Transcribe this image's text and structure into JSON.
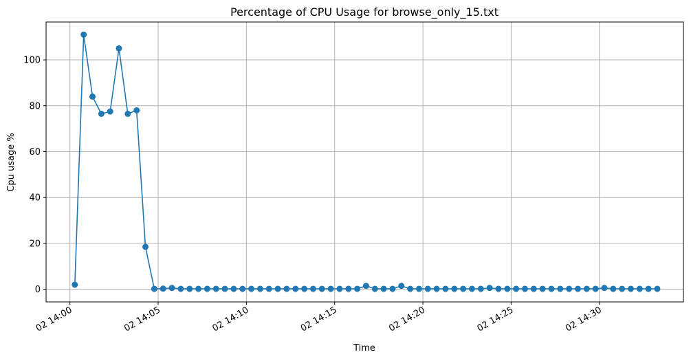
{
  "chart_data": {
    "type": "line",
    "title": "Percentage of CPU Usage for browse_only_15.txt",
    "xlabel": "Time",
    "ylabel": "Cpu usage %",
    "x_tick_labels": [
      "02 14:00",
      "02 14:05",
      "02 14:10",
      "02 14:15",
      "02 14:20",
      "02 14:25",
      "02 14:30"
    ],
    "x_tick_minutes": [
      0,
      5,
      10,
      15,
      20,
      25,
      30
    ],
    "xlim_minutes": [
      -1.35,
      34.76
    ],
    "y_ticks": [
      0,
      20,
      40,
      60,
      80,
      100
    ],
    "ylim": [
      -5.5,
      116.5
    ],
    "grid": true,
    "color": "#1f77b4",
    "series": [
      {
        "x_minutes": [
          0.28,
          0.78,
          1.28,
          1.78,
          2.28,
          2.78,
          3.28,
          3.78,
          4.28,
          4.78,
          5.28,
          5.78,
          6.28,
          6.78,
          7.28,
          7.78,
          8.28,
          8.78,
          9.28,
          9.78,
          10.28,
          10.78,
          11.28,
          11.78,
          12.28,
          12.78,
          13.28,
          13.78,
          14.28,
          14.78,
          15.28,
          15.78,
          16.28,
          16.78,
          17.28,
          17.78,
          18.28,
          18.78,
          19.28,
          19.78,
          20.28,
          20.78,
          21.28,
          21.78,
          22.28,
          22.78,
          23.28,
          23.78,
          24.28,
          24.78,
          25.28,
          25.78,
          26.28,
          26.78,
          27.28,
          27.78,
          28.28,
          28.78,
          29.28,
          29.78,
          30.28,
          30.78,
          31.28,
          31.78,
          32.28,
          32.78,
          33.28
        ],
        "values": [
          2,
          111,
          84,
          76.5,
          77.5,
          105,
          76.5,
          78,
          18.5,
          0.2,
          0.3,
          0.6,
          0.2,
          0.2,
          0.2,
          0.2,
          0.2,
          0.2,
          0.2,
          0.2,
          0.2,
          0.2,
          0.2,
          0.2,
          0.2,
          0.2,
          0.2,
          0.2,
          0.2,
          0.2,
          0.2,
          0.2,
          0.2,
          1.5,
          0.2,
          0.2,
          0.2,
          1.5,
          0.2,
          0.2,
          0.2,
          0.2,
          0.2,
          0.2,
          0.2,
          0.2,
          0.2,
          0.6,
          0.2,
          0.2,
          0.2,
          0.2,
          0.2,
          0.2,
          0.2,
          0.2,
          0.2,
          0.2,
          0.2,
          0.2,
          0.6,
          0.2,
          0.2,
          0.2,
          0.2,
          0.2,
          0.2
        ]
      }
    ]
  }
}
